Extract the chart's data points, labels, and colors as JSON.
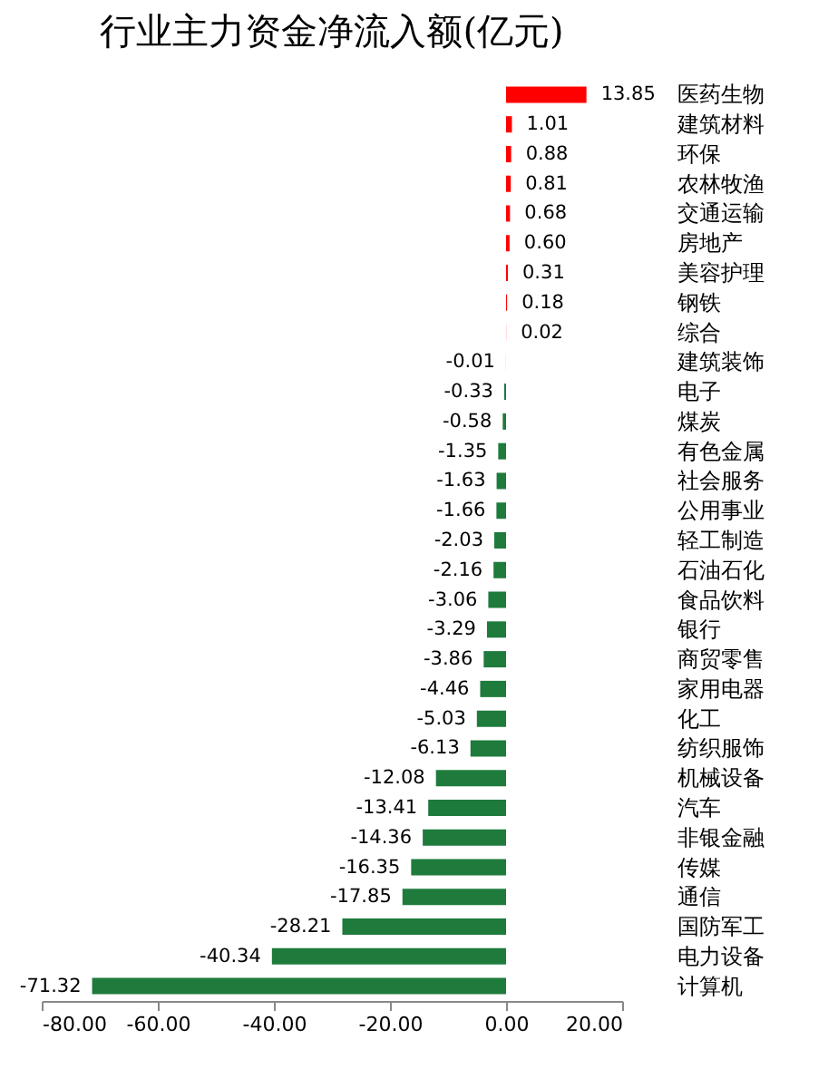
{
  "chart_data": {
    "type": "bar",
    "title": "行业主力资金净流入额(亿元)",
    "orientation": "horizontal",
    "categories": [
      "医药生物",
      "建筑材料",
      "环保",
      "农林牧渔",
      "交通运输",
      "房地产",
      "美容护理",
      "钢铁",
      "综合",
      "建筑装饰",
      "电子",
      "煤炭",
      "有色金属",
      "社会服务",
      "公用事业",
      "轻工制造",
      "石油石化",
      "食品饮料",
      "银行",
      "商贸零售",
      "家用电器",
      "化工",
      "纺织服饰",
      "机械设备",
      "汽车",
      "非银金融",
      "传媒",
      "通信",
      "国防军工",
      "电力设备",
      "计算机"
    ],
    "values": [
      13.85,
      1.01,
      0.88,
      0.81,
      0.68,
      0.6,
      0.31,
      0.18,
      0.02,
      -0.01,
      -0.33,
      -0.58,
      -1.35,
      -1.63,
      -1.66,
      -2.03,
      -2.16,
      -3.06,
      -3.29,
      -3.86,
      -4.46,
      -5.03,
      -6.13,
      -12.08,
      -13.41,
      -14.36,
      -16.35,
      -17.85,
      -28.21,
      -40.34,
      -71.32
    ],
    "value_labels": [
      "13.85",
      "1.01",
      "0.88",
      "0.81",
      "0.68",
      "0.60",
      "0.31",
      "0.18",
      "0.02",
      "-0.01",
      "-0.33",
      "-0.58",
      "-1.35",
      "-1.63",
      "-1.66",
      "-2.03",
      "-2.16",
      "-3.06",
      "-3.29",
      "-3.86",
      "-4.46",
      "-5.03",
      "-6.13",
      "-12.08",
      "-13.41",
      "-14.36",
      "-16.35",
      "-17.85",
      "-28.21",
      "-40.34",
      "-71.32"
    ],
    "colors": [
      "#ff0000",
      "#ff0000",
      "#ff0000",
      "#ff0000",
      "#ff0000",
      "#ff0000",
      "#ff0000",
      "#ff0000",
      "#ff0000",
      "#1e7b3c",
      "#1e7b3c",
      "#1e7b3c",
      "#1e7b3c",
      "#1e7b3c",
      "#1e7b3c",
      "#1e7b3c",
      "#1e7b3c",
      "#1e7b3c",
      "#1e7b3c",
      "#1e7b3c",
      "#1e7b3c",
      "#1e7b3c",
      "#1e7b3c",
      "#1e7b3c",
      "#1e7b3c",
      "#1e7b3c",
      "#1e7b3c",
      "#1e7b3c",
      "#1e7b3c",
      "#1e7b3c",
      "#1e7b3c"
    ],
    "xlim": [
      -80,
      20
    ],
    "xticks": [
      {
        "value": -80,
        "label": "-80.00"
      },
      {
        "value": -60,
        "label": "-60.00"
      },
      {
        "value": -40,
        "label": "-40.00"
      },
      {
        "value": -20,
        "label": "-20.00"
      },
      {
        "value": 0,
        "label": "0.00"
      },
      {
        "value": 20,
        "label": "20.00"
      }
    ],
    "grid": false
  }
}
